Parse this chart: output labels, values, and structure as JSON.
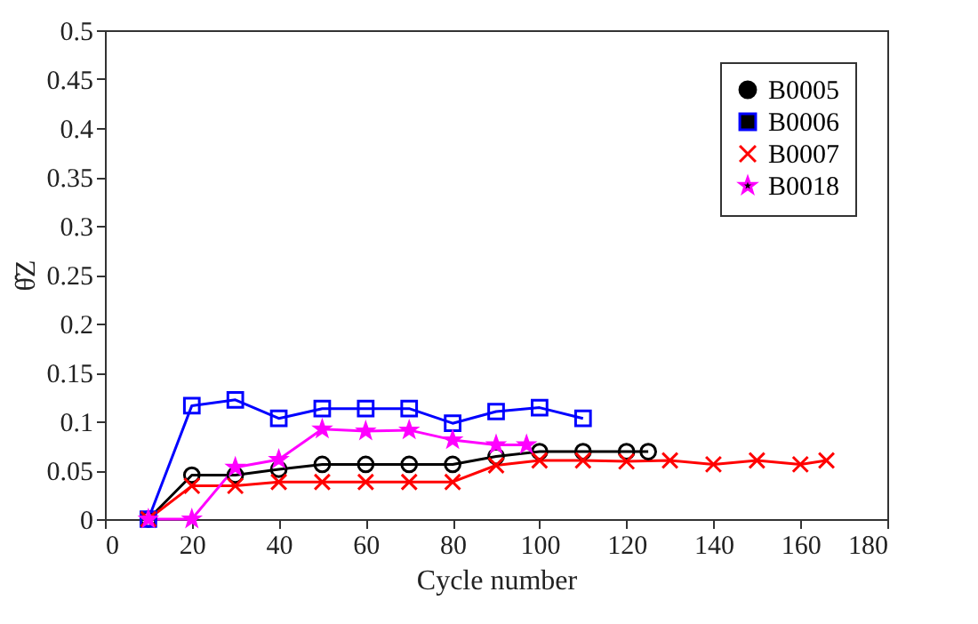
{
  "chart_data": {
    "type": "line",
    "xlabel": "Cycle number",
    "ylabel": "θ̂Z",
    "xlim": [
      0,
      180
    ],
    "ylim": [
      0,
      0.5
    ],
    "xticks": [
      0,
      20,
      40,
      60,
      80,
      100,
      120,
      140,
      160,
      180
    ],
    "yticks": [
      0,
      0.05,
      0.1,
      0.15,
      0.2,
      0.25,
      0.3,
      0.35,
      0.4,
      0.45,
      0.5
    ],
    "grid": false,
    "legend": "top right",
    "line_style": "solid",
    "series": [
      {
        "name": "B0005",
        "color": "#000000",
        "marker": "circle",
        "x": [
          10,
          20,
          30,
          40,
          50,
          60,
          70,
          80,
          90,
          100,
          110,
          120,
          125
        ],
        "values": [
          0,
          0.045,
          0.045,
          0.051,
          0.056,
          0.056,
          0.056,
          0.056,
          0.064,
          0.069,
          0.069,
          0.069,
          0.069
        ]
      },
      {
        "name": "B0006",
        "color": "#0000ff",
        "marker": "square",
        "x": [
          10,
          20,
          30,
          40,
          50,
          60,
          70,
          80,
          90,
          100,
          110
        ],
        "values": [
          0,
          0.116,
          0.122,
          0.103,
          0.113,
          0.113,
          0.113,
          0.098,
          0.11,
          0.114,
          0.103
        ]
      },
      {
        "name": "B0007",
        "color": "#ff0000",
        "marker": "cross",
        "x": [
          10,
          20,
          30,
          40,
          50,
          60,
          70,
          80,
          90,
          100,
          110,
          120,
          130,
          140,
          150,
          160,
          166
        ],
        "values": [
          0,
          0.034,
          0.034,
          0.038,
          0.038,
          0.038,
          0.038,
          0.038,
          0.055,
          0.06,
          0.06,
          0.059,
          0.06,
          0.056,
          0.06,
          0.056,
          0.06
        ]
      },
      {
        "name": "B0018",
        "color": "#ff00ff",
        "marker": "star",
        "x": [
          10,
          20,
          30,
          40,
          50,
          60,
          70,
          80,
          90,
          97
        ],
        "values": [
          0,
          0,
          0.053,
          0.061,
          0.092,
          0.09,
          0.091,
          0.081,
          0.076,
          0.076
        ]
      }
    ]
  }
}
